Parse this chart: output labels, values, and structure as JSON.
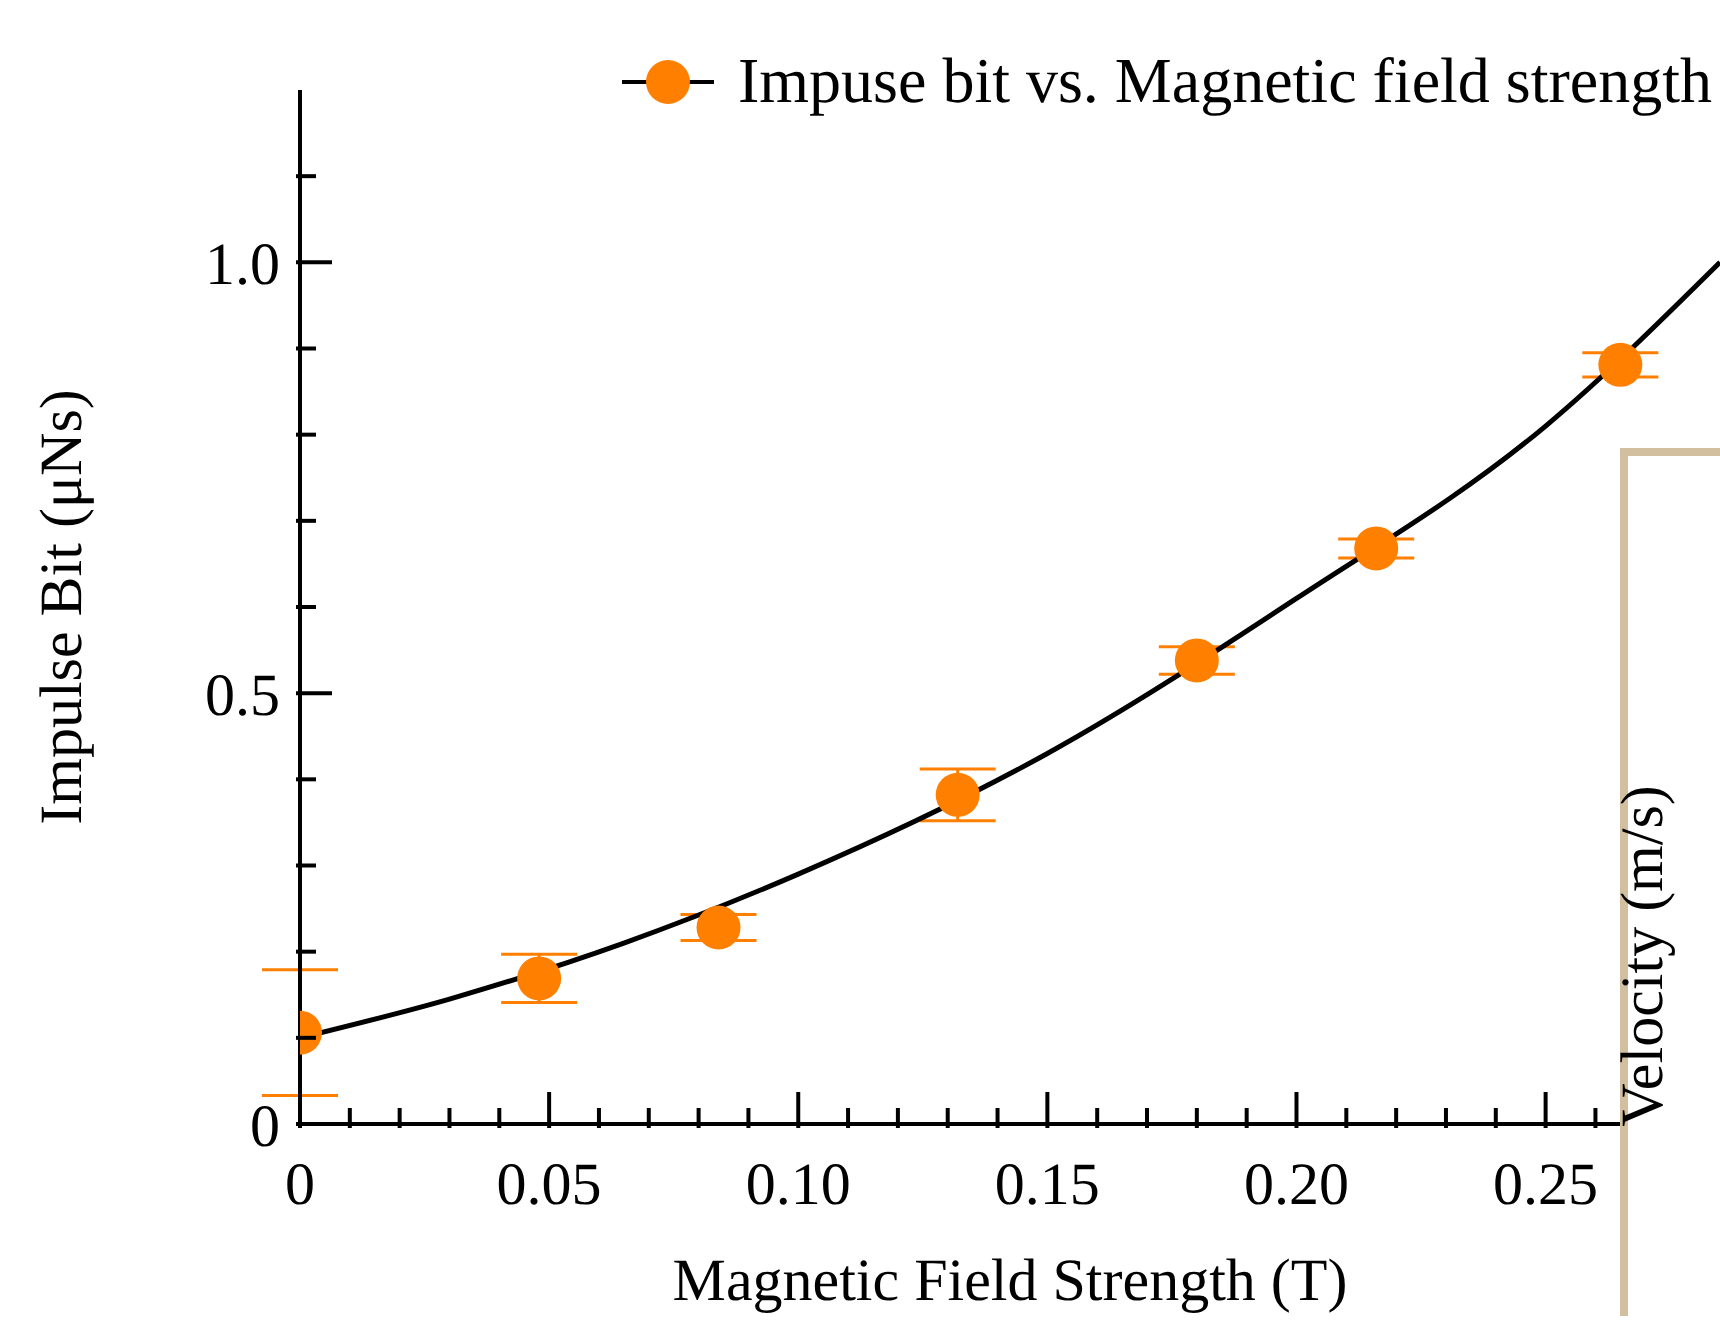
{
  "chart_data": [
    {
      "type": "scatter",
      "xlabel": "Magnetic Field Strength (T)",
      "ylabel": "Impulse Bit (μNs)",
      "legend": "top right",
      "xlim": [
        0,
        0.285
      ],
      "ylim": [
        0,
        1.2
      ],
      "xticks": [
        0,
        {
          "value": 0.01,
          "label": null
        },
        {
          "value": 0.02,
          "label": null
        },
        {
          "value": 0.03,
          "label": null
        },
        {
          "value": 0.04,
          "label": null
        },
        0.05,
        {
          "value": 0.06,
          "label": null
        },
        {
          "value": 0.07,
          "label": null
        },
        {
          "value": 0.08,
          "label": null
        },
        {
          "value": 0.09,
          "label": null
        },
        {
          "value": 0.1,
          "label": "0.10"
        },
        {
          "value": 0.11,
          "label": null
        },
        {
          "value": 0.12,
          "label": null
        },
        {
          "value": 0.13,
          "label": null
        },
        {
          "value": 0.14,
          "label": null
        },
        0.15,
        {
          "value": 0.16,
          "label": null
        },
        {
          "value": 0.17,
          "label": null
        },
        {
          "value": 0.18,
          "label": null
        },
        {
          "value": 0.19,
          "label": null
        },
        {
          "value": 0.2,
          "label": "0.20"
        },
        {
          "value": 0.21,
          "label": null
        },
        {
          "value": 0.22,
          "label": null
        },
        {
          "value": 0.23,
          "label": null
        },
        {
          "value": 0.24,
          "label": null
        },
        0.25,
        {
          "value": 0.26,
          "label": null
        },
        {
          "value": 0.27,
          "label": null
        },
        {
          "value": 0.28,
          "label": null
        }
      ],
      "yticks": [
        0,
        {
          "value": 0.1,
          "label": null
        },
        {
          "value": 0.2,
          "label": null
        },
        {
          "value": 0.3,
          "label": null
        },
        {
          "value": 0.4,
          "label": null
        },
        0.5,
        {
          "value": 0.6,
          "label": null
        },
        {
          "value": 0.7,
          "label": null
        },
        {
          "value": 0.8,
          "label": null
        },
        {
          "value": 0.9,
          "label": null
        },
        {
          "value": 1,
          "label": "1.0"
        },
        {
          "value": 1.1,
          "label": null
        }
      ],
      "series": [
        {
          "name": "Impuse bit vs. Magnetic field strength",
          "type": "scatter",
          "marker": "circle",
          "color": "#ff7f00",
          "x": [
            0,
            0.048,
            0.084,
            0.132,
            0.18,
            0.216,
            0.265
          ],
          "values": [
            0.106,
            0.169,
            0.228,
            0.382,
            0.538,
            0.668,
            0.881
          ],
          "errors": [
            0.073,
            0.028,
            0.015,
            0.03,
            0.016,
            0.011,
            0.014
          ]
        },
        {
          "type": "line",
          "color": "#000000",
          "x": [
            0,
            0.03,
            0.065,
            0.1,
            0.15,
            0.2,
            0.25,
            0.285
          ],
          "values": [
            0.1,
            0.145,
            0.21,
            0.29,
            0.43,
            0.61,
            0.81,
            1.0
          ]
        }
      ]
    },
    {
      "type": "other",
      "ylabel": "Velocity (m/s)"
    }
  ]
}
